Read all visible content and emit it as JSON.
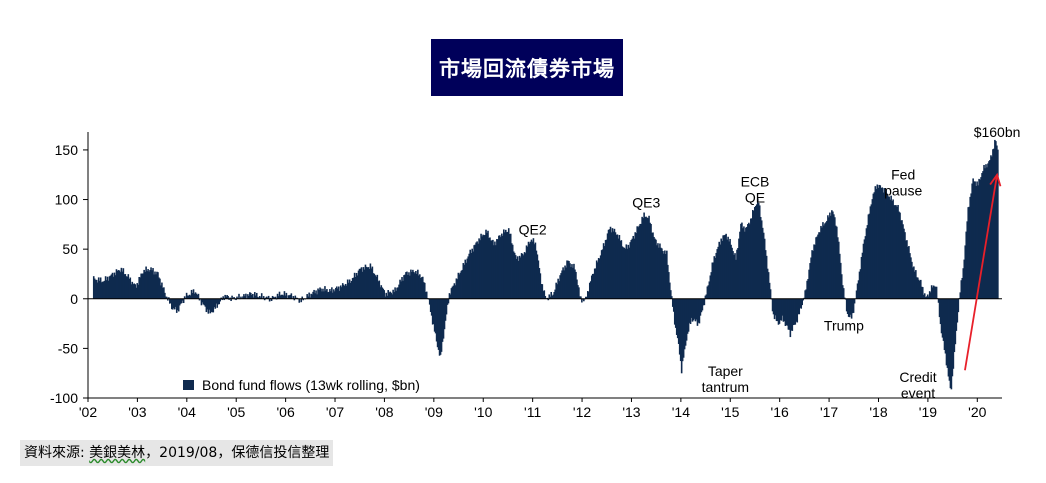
{
  "title": "市場回流債券市場",
  "source_prefix": "資料來源: ",
  "source_org": "美銀美林",
  "source_suffix": "，2019/08，保德信投信整理",
  "colors": {
    "bars": "#0f2a4f",
    "arrow": "#e8202a",
    "title_bg": "#00005a"
  },
  "chart_data": {
    "type": "area",
    "xlabel": "",
    "ylabel": "",
    "ylim": [
      -100,
      160
    ],
    "xlim": [
      2002,
      2020.5
    ],
    "yticks": [
      -100,
      -50,
      0,
      50,
      100,
      150
    ],
    "ytick_labels": [
      "-100",
      "-50",
      "0",
      "50",
      "100",
      "150"
    ],
    "xticks": [
      2002,
      2003,
      2004,
      2005,
      2006,
      2007,
      2008,
      2009,
      2010,
      2011,
      2012,
      2013,
      2014,
      2015,
      2016,
      2017,
      2018,
      2019,
      2020
    ],
    "xtick_labels": [
      "'02",
      "'03",
      "'04",
      "'05",
      "'06",
      "'07",
      "'08",
      "'09",
      "'10",
      "'11",
      "'12",
      "'13",
      "'14",
      "'15",
      "'16",
      "'17",
      "'18",
      "'19",
      "'20"
    ],
    "legend": {
      "label": "Bond fund flows (13wk rolling, $bn)",
      "position": "bottom-left"
    },
    "series": [
      {
        "name": "Bond fund flows (13wk rolling, $bn)",
        "points": [
          [
            2002.1,
            20
          ],
          [
            2002.3,
            18
          ],
          [
            2002.5,
            25
          ],
          [
            2002.65,
            30
          ],
          [
            2002.8,
            22
          ],
          [
            2002.95,
            12
          ],
          [
            2003.1,
            28
          ],
          [
            2003.25,
            30
          ],
          [
            2003.4,
            25
          ],
          [
            2003.55,
            5
          ],
          [
            2003.7,
            -10
          ],
          [
            2003.8,
            -12
          ],
          [
            2003.95,
            2
          ],
          [
            2004.15,
            8
          ],
          [
            2004.3,
            -5
          ],
          [
            2004.45,
            -15
          ],
          [
            2004.55,
            -10
          ],
          [
            2004.75,
            3
          ],
          [
            2004.9,
            0
          ],
          [
            2005.1,
            2
          ],
          [
            2005.3,
            5
          ],
          [
            2005.5,
            2
          ],
          [
            2005.7,
            0
          ],
          [
            2005.9,
            5
          ],
          [
            2006.1,
            3
          ],
          [
            2006.3,
            -2
          ],
          [
            2006.5,
            5
          ],
          [
            2006.7,
            10
          ],
          [
            2006.9,
            8
          ],
          [
            2007.1,
            12
          ],
          [
            2007.3,
            18
          ],
          [
            2007.5,
            30
          ],
          [
            2007.7,
            33
          ],
          [
            2007.85,
            20
          ],
          [
            2008.0,
            5
          ],
          [
            2008.2,
            8
          ],
          [
            2008.4,
            25
          ],
          [
            2008.6,
            28
          ],
          [
            2008.75,
            22
          ],
          [
            2008.85,
            5
          ],
          [
            2008.95,
            -20
          ],
          [
            2009.05,
            -45
          ],
          [
            2009.12,
            -60
          ],
          [
            2009.2,
            -30
          ],
          [
            2009.3,
            5
          ],
          [
            2009.5,
            25
          ],
          [
            2009.7,
            45
          ],
          [
            2009.9,
            60
          ],
          [
            2010.05,
            68
          ],
          [
            2010.2,
            55
          ],
          [
            2010.35,
            65
          ],
          [
            2010.5,
            70
          ],
          [
            2010.65,
            40
          ],
          [
            2010.8,
            45
          ],
          [
            2010.95,
            60
          ],
          [
            2011.05,
            55
          ],
          [
            2011.15,
            20
          ],
          [
            2011.25,
            0
          ],
          [
            2011.4,
            5
          ],
          [
            2011.55,
            25
          ],
          [
            2011.7,
            38
          ],
          [
            2011.85,
            30
          ],
          [
            2011.95,
            0
          ],
          [
            2012.05,
            -2
          ],
          [
            2012.2,
            25
          ],
          [
            2012.4,
            50
          ],
          [
            2012.55,
            72
          ],
          [
            2012.7,
            65
          ],
          [
            2012.85,
            50
          ],
          [
            2012.95,
            55
          ],
          [
            2013.1,
            70
          ],
          [
            2013.25,
            85
          ],
          [
            2013.35,
            80
          ],
          [
            2013.45,
            60
          ],
          [
            2013.6,
            50
          ],
          [
            2013.7,
            45
          ],
          [
            2013.8,
            0
          ],
          [
            2013.88,
            -30
          ],
          [
            2013.95,
            -50
          ],
          [
            2014.0,
            -72
          ],
          [
            2014.1,
            -40
          ],
          [
            2014.2,
            -20
          ],
          [
            2014.35,
            -25
          ],
          [
            2014.5,
            5
          ],
          [
            2014.65,
            40
          ],
          [
            2014.8,
            60
          ],
          [
            2014.9,
            65
          ],
          [
            2015.0,
            55
          ],
          [
            2015.1,
            40
          ],
          [
            2015.2,
            75
          ],
          [
            2015.3,
            70
          ],
          [
            2015.4,
            80
          ],
          [
            2015.5,
            95
          ],
          [
            2015.55,
            100
          ],
          [
            2015.65,
            70
          ],
          [
            2015.75,
            30
          ],
          [
            2015.85,
            -15
          ],
          [
            2015.95,
            -25
          ],
          [
            2016.05,
            -20
          ],
          [
            2016.2,
            -35
          ],
          [
            2016.35,
            -20
          ],
          [
            2016.5,
            5
          ],
          [
            2016.65,
            50
          ],
          [
            2016.8,
            70
          ],
          [
            2016.95,
            80
          ],
          [
            2017.05,
            90
          ],
          [
            2017.15,
            70
          ],
          [
            2017.25,
            20
          ],
          [
            2017.35,
            -15
          ],
          [
            2017.45,
            -20
          ],
          [
            2017.55,
            10
          ],
          [
            2017.7,
            60
          ],
          [
            2017.85,
            100
          ],
          [
            2017.95,
            115
          ],
          [
            2018.1,
            110
          ],
          [
            2018.25,
            100
          ],
          [
            2018.4,
            90
          ],
          [
            2018.55,
            60
          ],
          [
            2018.7,
            30
          ],
          [
            2018.85,
            15
          ],
          [
            2018.95,
            0
          ],
          [
            2019.05,
            10
          ],
          [
            2019.15,
            15
          ],
          [
            2019.25,
            -30
          ],
          [
            2019.35,
            -60
          ],
          [
            2019.45,
            -95
          ],
          [
            2019.55,
            -40
          ],
          [
            2019.62,
            0
          ],
          [
            2019.7,
            30
          ],
          [
            2019.8,
            90
          ],
          [
            2019.9,
            120
          ],
          [
            2020.0,
            115
          ],
          [
            2020.1,
            130
          ],
          [
            2020.25,
            140
          ],
          [
            2020.35,
            160
          ],
          [
            2020.4,
            150
          ]
        ]
      }
    ],
    "annotations": [
      {
        "text": "QE2",
        "x": 2011.0,
        "y": 65
      },
      {
        "text": "QE3",
        "x": 2013.3,
        "y": 92
      },
      {
        "lines": [
          "ECB",
          "QE"
        ],
        "x": 2015.5,
        "y": 113
      },
      {
        "lines": [
          "Fed",
          "pause"
        ],
        "x": 2018.5,
        "y": 120
      },
      {
        "text": "Trump",
        "x": 2017.3,
        "y": -32
      },
      {
        "lines": [
          "Taper",
          "tantrum"
        ],
        "x": 2014.9,
        "y": -78
      },
      {
        "lines": [
          "Credit",
          "event"
        ],
        "x": 2018.8,
        "y": -84
      },
      {
        "text": "$160bn",
        "x": 2020.4,
        "y": 163
      }
    ],
    "arrow": {
      "from": [
        2019.75,
        -72
      ],
      "to": [
        2020.4,
        125
      ]
    }
  }
}
